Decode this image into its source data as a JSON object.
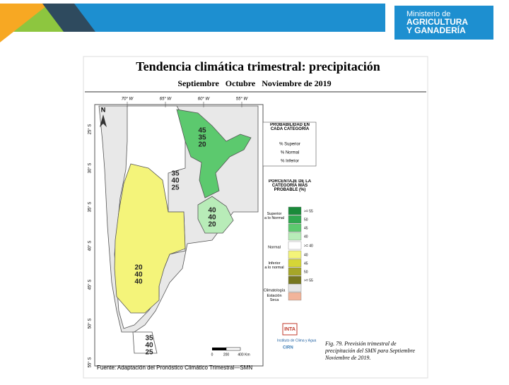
{
  "logo": {
    "line1": "Ministerio de",
    "line2": "AGRICULTURA",
    "line3": "Y GANADERÍA"
  },
  "title": "Tendencia climática trimestral: precipitación",
  "subtitle": "Septiembre   Octubre   Noviembre de 2019",
  "map": {
    "longitudes": [
      "70° W",
      "65° W",
      "60° W",
      "55° W"
    ],
    "latitudes": [
      "25° S",
      "30° S",
      "35° S",
      "40° S",
      "45° S",
      "50° S",
      "55° S"
    ],
    "north": "N",
    "regions": [
      {
        "superior": 45,
        "normal": 35,
        "inferior": 20
      },
      {
        "superior": 35,
        "normal": 40,
        "inferior": 25
      },
      {
        "superior": 40,
        "normal": 40,
        "inferior": 20
      },
      {
        "superior": 20,
        "normal": 40,
        "inferior": 40
      },
      {
        "superior": 35,
        "normal": 40,
        "inferior": 25
      }
    ],
    "scale_bar": [
      "0",
      "200",
      "400 Km"
    ]
  },
  "legend_probability": {
    "title": "PROBABILIDAD EN CADA CATEGORÍA",
    "items": [
      "% Superior",
      "% Normal",
      "% Inferior"
    ]
  },
  "legend_percent": {
    "title": "PORCENTAJE DE LA CATEGORÍA MÁS PROBABLE (%)",
    "groups": [
      "Superior a lo Normal",
      "Normal",
      "Inferior a lo normal",
      "Climatología",
      "Estación Seca"
    ],
    "steps": [
      {
        "label": ">= 55",
        "color": "#1a8a3a"
      },
      {
        "label": "50",
        "color": "#2fa84f"
      },
      {
        "label": "45",
        "color": "#5cc96e"
      },
      {
        "label": "40",
        "color": "#b8ecb8"
      },
      {
        "label": ">= 40",
        "color": "#ffffff"
      },
      {
        "label": "40",
        "color": "#f4f47a"
      },
      {
        "label": "45",
        "color": "#d6d636"
      },
      {
        "label": "50",
        "color": "#a6a628"
      },
      {
        "label": ">= 55",
        "color": "#77771e"
      },
      {
        "label": null,
        "color": "#e6e6e6"
      },
      {
        "label": null,
        "color": "#f2b49a"
      }
    ]
  },
  "source": "Fuente: Adaptación del Pronóstico Climático Trimestral—SMN",
  "caption": "Fig. 79. Previsión trimestral de precipitación del SMN para Septiembre Noviembre de 2019.",
  "institute": {
    "name": "INTA",
    "sub": "Instituto de Clima y Agua",
    "center": "CIRN"
  }
}
